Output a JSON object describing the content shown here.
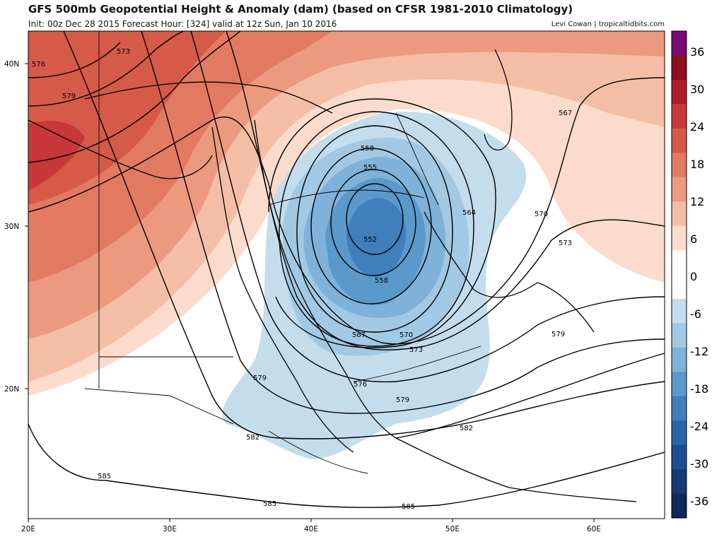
{
  "header": {
    "title": "GFS 500mb Geopotential Height & Anomaly (dam) (based on CFSR 1981-2010 Climatology)",
    "subtitle": "Init: 00z Dec 28 2015   Forecast Hour: [324]   valid at 12z Sun, Jan 10 2016",
    "credit": "Levi Cowan | tropicaltidbits.com"
  },
  "map": {
    "lon_range": [
      20,
      65
    ],
    "lat_range": [
      12,
      42
    ],
    "lon_ticks": [
      "20E",
      "30E",
      "40E",
      "50E",
      "60E"
    ],
    "lat_ticks": [
      "20N",
      "30N",
      "40N"
    ],
    "contour_labels": [
      "552",
      "555",
      "558",
      "558",
      "564",
      "567",
      "567",
      "570",
      "570",
      "573",
      "573",
      "573",
      "576",
      "576",
      "579",
      "579",
      "579",
      "579",
      "582",
      "582",
      "585",
      "585",
      "585"
    ],
    "low_center": {
      "lon": 45,
      "lat": 31
    }
  },
  "colorbar": {
    "tick_labels": [
      "36",
      "30",
      "24",
      "18",
      "12",
      "6",
      "0",
      "-6",
      "-12",
      "-18",
      "-24",
      "-30",
      "-36"
    ],
    "colors": [
      "#7a0c74",
      "#8c1020",
      "#b01c28",
      "#c8383a",
      "#d65a48",
      "#e27a62",
      "#eb9a80",
      "#f4bea6",
      "#fbdccc",
      "#ffffff",
      "#ffffff",
      "#c4ddec",
      "#a2c9e3",
      "#7fb2d8",
      "#5a99ca",
      "#3e7fbc",
      "#2a65aa",
      "#1c4e92",
      "#153a76",
      "#0e285a"
    ],
    "range": [
      -39,
      39
    ]
  }
}
